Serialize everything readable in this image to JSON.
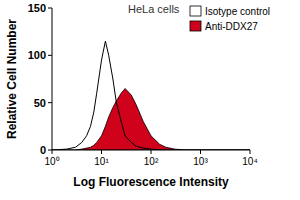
{
  "chart_data": {
    "type": "area",
    "title": "HeLa cells",
    "x_label": "Log Fluorescence Intensity",
    "y_label": "Relative Cell Number",
    "log": "x",
    "x": [
      1,
      2,
      3,
      4,
      5,
      6,
      7,
      8,
      10,
      12,
      14,
      17,
      20,
      25,
      30,
      40,
      50,
      70,
      100,
      150,
      200,
      300,
      500,
      1000,
      10000
    ],
    "series": [
      {
        "name": "Isotype control",
        "type": "line",
        "color": "#000000",
        "values": [
          0,
          1,
          3,
          8,
          15,
          25,
          40,
          60,
          95,
          115,
          100,
          75,
          50,
          30,
          15,
          8,
          4,
          2,
          1,
          0,
          0,
          0,
          0,
          0,
          0
        ]
      },
      {
        "name": "Anti-DDX27",
        "type": "area",
        "color": "#d0021b",
        "values": [
          0,
          0,
          0,
          1,
          2,
          3,
          5,
          8,
          15,
          25,
          35,
          45,
          52,
          60,
          65,
          58,
          48,
          30,
          15,
          6,
          3,
          1,
          0,
          0,
          0
        ]
      }
    ],
    "xlim": [
      1,
      10000
    ],
    "xticks": [
      {
        "value": 1,
        "label": "10⁰"
      },
      {
        "value": 10,
        "label": "10¹"
      },
      {
        "value": 100,
        "label": "10²"
      },
      {
        "value": 1000,
        "label": "10³"
      },
      {
        "value": 10000,
        "label": "10⁴"
      }
    ],
    "ylim": [
      0,
      150
    ],
    "yticks": [
      0,
      50,
      100,
      150
    ],
    "legend": "top-right",
    "grid": false
  }
}
